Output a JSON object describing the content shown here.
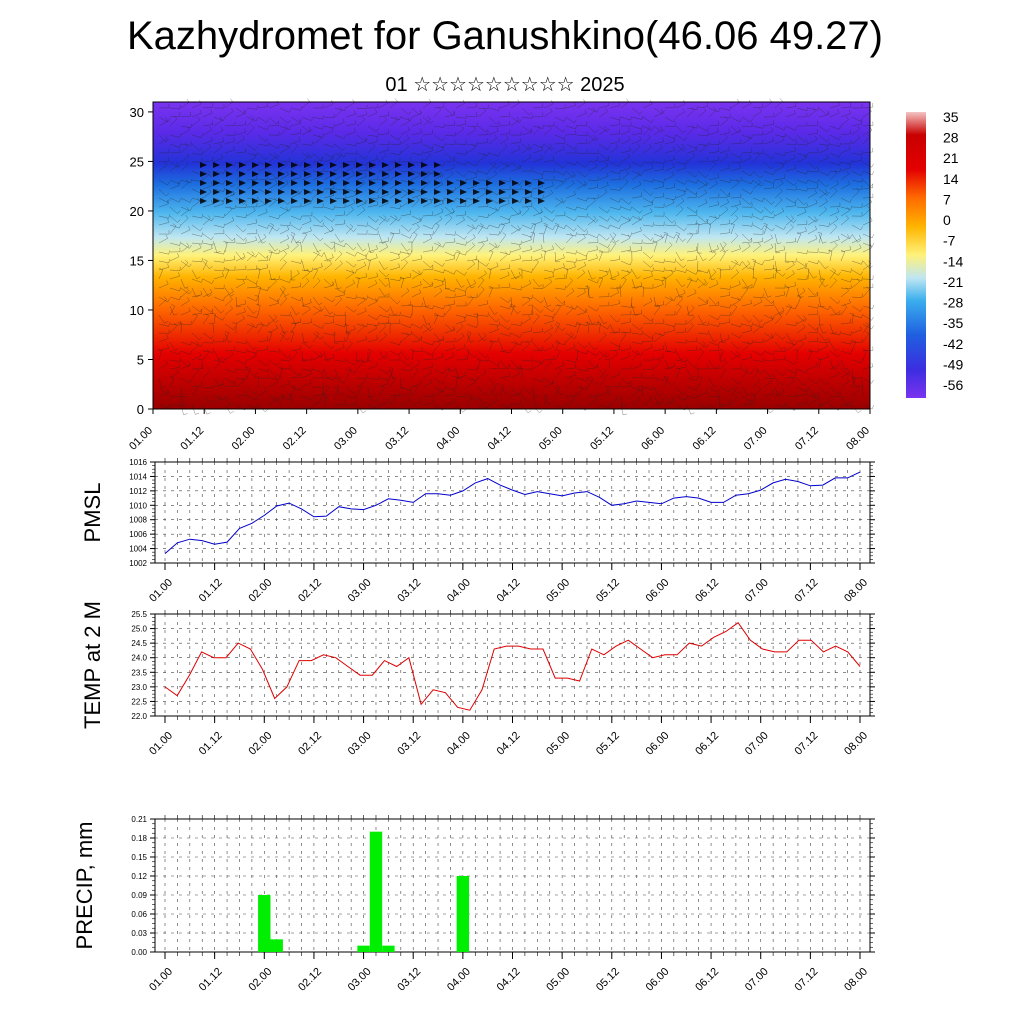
{
  "title": "Kazhydromet for Ganushkino(46.06 49.27)",
  "subtitle": "01 ☆☆☆☆☆☆☆☆☆ 2025",
  "chart_data": [
    {
      "type": "heatmap",
      "name": "temperature-cross-section",
      "description_hidden": false,
      "x_ticks": [
        "01.00",
        "01.12",
        "02.00",
        "02.12",
        "03.00",
        "03.12",
        "04.00",
        "04.12",
        "05.00",
        "05.12",
        "06.00",
        "06.12",
        "07.00",
        "07.12",
        "08.00"
      ],
      "y_ticks": [
        "0",
        "5",
        "10",
        "15",
        "20",
        "25",
        "30"
      ],
      "ylim": [
        0,
        31
      ],
      "colorbar_labels": [
        "35",
        "28",
        "21",
        "14",
        "7",
        "0",
        "-7",
        "-14",
        "-21",
        "-28",
        "-35",
        "-42",
        "-49",
        "-56"
      ],
      "colorbar_range": [
        -60,
        38
      ]
    },
    {
      "type": "line",
      "ylabel": "PMSL",
      "ylim": [
        1002,
        1016
      ],
      "y_ticks": [
        "1002",
        "1004",
        "1006",
        "1008",
        "1010",
        "1012",
        "1014",
        "1016"
      ],
      "x_ticks": [
        "01.00",
        "01.12",
        "02.00",
        "02.12",
        "03.00",
        "03.12",
        "04.00",
        "04.12",
        "05.00",
        "05.12",
        "06.00",
        "06.12",
        "07.00",
        "07.12",
        "08.00"
      ],
      "series": [
        {
          "color": "#0000cc",
          "values": [
            1003.3,
            1004.8,
            1005.3,
            1005.1,
            1004.6,
            1004.9,
            1006.8,
            1007.5,
            1008.6,
            1009.9,
            1010.3,
            1009.5,
            1008.4,
            1008.5,
            1009.8,
            1009.5,
            1009.4,
            1010.0,
            1010.9,
            1010.7,
            1010.4,
            1011.6,
            1011.6,
            1011.4,
            1012.0,
            1013.1,
            1013.7,
            1012.8,
            1012.1,
            1011.5,
            1011.9,
            1011.6,
            1011.3,
            1011.7,
            1011.9,
            1011.1,
            1010.0,
            1010.2,
            1010.6,
            1010.4,
            1010.2,
            1011.0,
            1011.2,
            1011.0,
            1010.4,
            1010.4,
            1011.4,
            1011.6,
            1012.1,
            1013.1,
            1013.6,
            1013.3,
            1012.7,
            1012.8,
            1013.8,
            1013.8,
            1014.6
          ]
        }
      ]
    },
    {
      "type": "line",
      "ylabel": "TEMP at 2 M",
      "ylim": [
        22.0,
        25.5
      ],
      "y_ticks": [
        "22.0",
        "22.5",
        "23.0",
        "23.5",
        "24.0",
        "24.5",
        "25.0",
        "25.5"
      ],
      "x_ticks": [
        "01.00",
        "01.12",
        "02.00",
        "02.12",
        "03.00",
        "03.12",
        "04.00",
        "04.12",
        "05.00",
        "05.12",
        "06.00",
        "06.12",
        "07.00",
        "07.12",
        "08.00"
      ],
      "series": [
        {
          "color": "#dd0000",
          "values": [
            23.0,
            22.7,
            23.4,
            24.2,
            24.0,
            24.0,
            24.5,
            24.3,
            23.6,
            22.6,
            23.0,
            23.9,
            23.9,
            24.1,
            24.0,
            23.7,
            23.4,
            23.4,
            23.9,
            23.7,
            24.0,
            22.4,
            22.9,
            22.8,
            22.3,
            22.2,
            22.9,
            24.3,
            24.4,
            24.4,
            24.3,
            24.3,
            23.3,
            23.3,
            23.2,
            24.3,
            24.1,
            24.4,
            24.6,
            24.3,
            24.0,
            24.1,
            24.1,
            24.5,
            24.4,
            24.7,
            24.9,
            25.2,
            24.6,
            24.3,
            24.2,
            24.2,
            24.6,
            24.6,
            24.2,
            24.4,
            24.2,
            23.7
          ]
        }
      ]
    },
    {
      "type": "bar",
      "ylabel": "PRECIP, mm",
      "ylim": [
        0,
        0.21
      ],
      "y_ticks": [
        "0.00",
        "0.03",
        "0.06",
        "0.09",
        "0.12",
        "0.15",
        "0.18",
        "0.21"
      ],
      "x_ticks": [
        "01.00",
        "01.12",
        "02.00",
        "02.12",
        "03.00",
        "03.12",
        "04.00",
        "04.12",
        "05.00",
        "05.12",
        "06.00",
        "06.12",
        "07.00",
        "07.12",
        "08.00"
      ],
      "series": [
        {
          "color": "#00ee00",
          "bars": [
            {
              "t": 2.0,
              "value": 0.09
            },
            {
              "t": 2.125,
              "value": 0.02
            },
            {
              "t": 3.0,
              "value": 0.01
            },
            {
              "t": 3.125,
              "value": 0.19
            },
            {
              "t": 3.25,
              "value": 0.01
            },
            {
              "t": 4.0,
              "value": 0.12
            }
          ]
        }
      ]
    }
  ]
}
